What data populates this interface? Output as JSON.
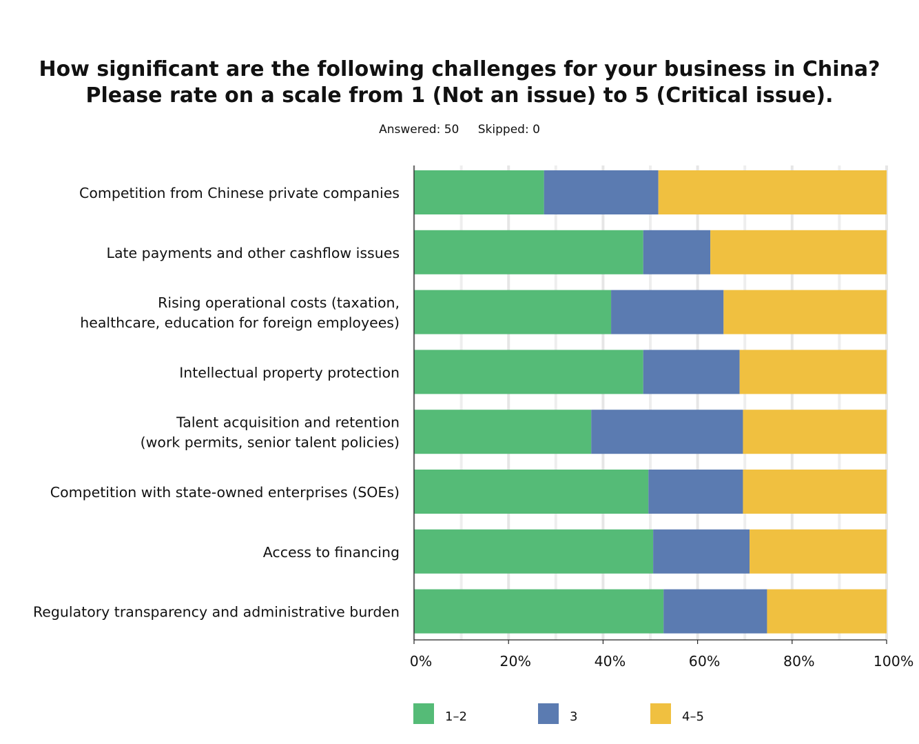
{
  "chart_data": {
    "type": "bar",
    "orientation": "horizontal",
    "stacked": true,
    "title_lines": [
      "How significant are the following challenges for your business in China?",
      "Please rate on a scale from 1 (Not an issue) to 5 (Critical issue)."
    ],
    "answered_label": "Answered: 50",
    "skipped_label": "Skipped: 0",
    "categories": [
      [
        "Competition from Chinese private companies"
      ],
      [
        "Late payments and other cashflow issues"
      ],
      [
        "Rising operational costs (taxation,",
        "healthcare, education for foreign employees)"
      ],
      [
        "Intellectual property protection"
      ],
      [
        "Talent acquisition and retention",
        "(work permits, senior talent policies)"
      ],
      [
        "Competition with state-owned enterprises (SOEs)"
      ],
      [
        "Access to financing"
      ],
      [
        "Regulatory transparency and administrative burden"
      ]
    ],
    "series": [
      {
        "name": "1–2",
        "color": "#55bb77",
        "values": [
          27.5,
          48.5,
          41.7,
          48.5,
          37.5,
          49.6,
          50.6,
          52.8
        ]
      },
      {
        "name": "3",
        "color": "#5b7bb1",
        "values": [
          24.2,
          14.2,
          23.8,
          20.4,
          32.1,
          20.0,
          20.4,
          21.9
        ]
      },
      {
        "name": "4–5",
        "color": "#f0c040",
        "values": [
          48.3,
          37.3,
          34.5,
          31.1,
          30.4,
          30.4,
          29.0,
          25.3
        ]
      }
    ],
    "xlim": [
      0,
      100
    ],
    "xticks": [
      "0%",
      "20%",
      "40%",
      "60%",
      "80%",
      "100%"
    ],
    "grid": true,
    "legend_position": "bottom"
  }
}
